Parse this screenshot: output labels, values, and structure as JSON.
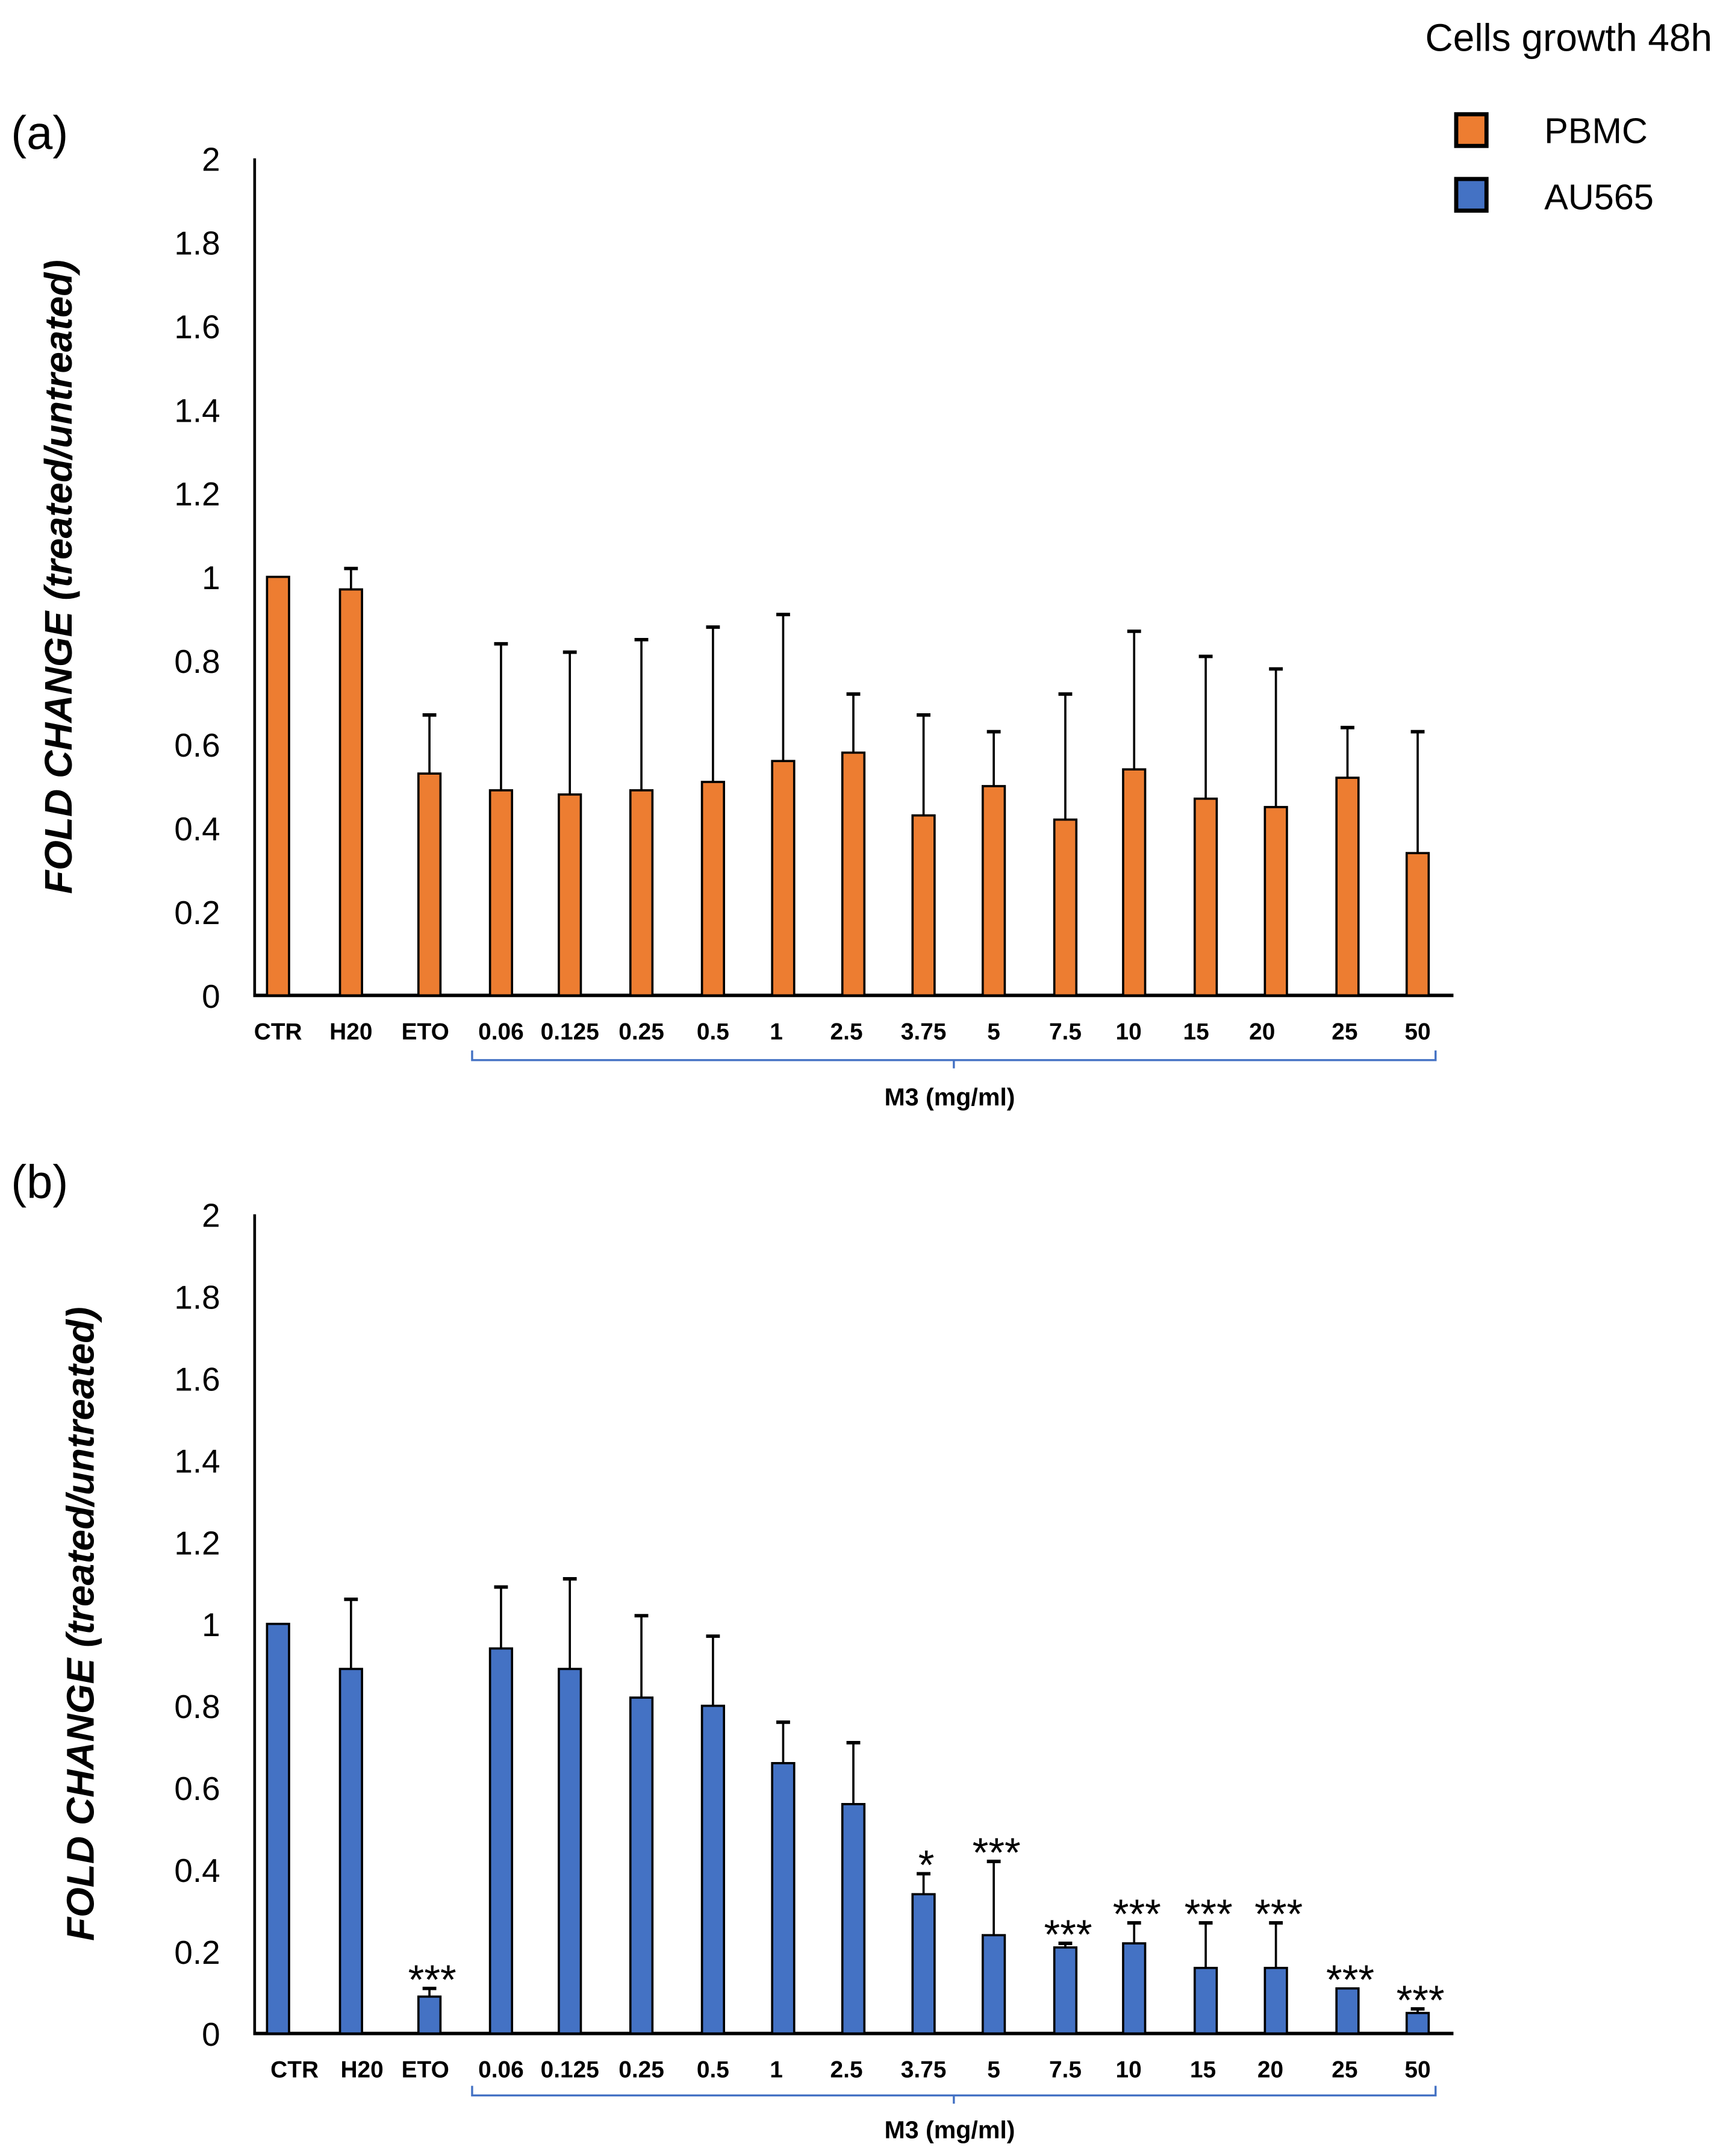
{
  "figure_title": "Cells growth 48h",
  "legend": [
    {
      "label": "PBMC",
      "color": "#ED7D31"
    },
    {
      "label": "AU565",
      "color": "#4472C4"
    }
  ],
  "chart_data": [
    {
      "type": "bar",
      "panel_label": "(a)",
      "series_name": "PBMC",
      "color": "#ED7D31",
      "ylabel_bold": "FOLD CHANGE",
      "ylabel_italic": "(treated/untreated)",
      "xlabel_group": "M3 (mg/ml)",
      "ylim": [
        0,
        2
      ],
      "yticks": [
        "0",
        "0.2",
        "0.4",
        "0.6",
        "0.8",
        "1",
        "1.2",
        "1.4",
        "1.6",
        "1.8",
        "2"
      ],
      "categories": [
        "CTR",
        "H20",
        "ETO",
        "0.06",
        "0.125",
        "0.25",
        "0.5",
        "1",
        "2.5",
        "3.75",
        "5",
        "7.5",
        "10",
        "15",
        "20",
        "25",
        "50"
      ],
      "values": [
        1.0,
        0.97,
        0.53,
        0.49,
        0.48,
        0.49,
        0.51,
        0.56,
        0.58,
        0.43,
        0.5,
        0.42,
        0.54,
        0.47,
        0.45,
        0.52,
        0.34
      ],
      "error_upper": [
        1.0,
        1.02,
        0.67,
        0.84,
        0.82,
        0.85,
        0.88,
        0.91,
        0.72,
        0.67,
        0.63,
        0.72,
        0.87,
        0.81,
        0.78,
        0.64,
        0.63
      ],
      "significance": [
        "",
        "",
        "",
        "",
        "",
        "",
        "",
        "",
        "",
        "",
        "",
        "",
        "",
        "",
        "",
        "",
        ""
      ],
      "grid": false
    },
    {
      "type": "bar",
      "panel_label": "(b)",
      "series_name": "AU565",
      "color": "#4472C4",
      "ylabel_bold": "FOLD CHANGE",
      "ylabel_italic": "(treated/untreated)",
      "xlabel_group": "M3 (mg/ml)",
      "ylim": [
        0,
        2
      ],
      "yticks": [
        "0",
        "0.2",
        "0.4",
        "0.6",
        "0.8",
        "1",
        "1.2",
        "1.4",
        "1.6",
        "1.8",
        "2"
      ],
      "categories": [
        "CTR",
        "H20",
        "ETO",
        "0.06",
        "0.125",
        "0.25",
        "0.5",
        "1",
        "2.5",
        "3.75",
        "5",
        "7.5",
        "10",
        "15",
        "20",
        "25",
        "50"
      ],
      "values": [
        1.0,
        0.89,
        0.09,
        0.94,
        0.89,
        0.82,
        0.8,
        0.66,
        0.56,
        0.34,
        0.24,
        0.21,
        0.22,
        0.16,
        0.16,
        0.11,
        0.05
      ],
      "error_upper": [
        1.0,
        1.06,
        0.11,
        1.09,
        1.11,
        1.02,
        0.97,
        0.76,
        0.71,
        0.39,
        0.42,
        0.22,
        0.27,
        0.27,
        0.27,
        0.11,
        0.06
      ],
      "significance": [
        "",
        "",
        "***",
        "",
        "",
        "",
        "",
        "",
        "",
        "*",
        "***",
        "***",
        "***",
        "***",
        "***",
        "***",
        "***"
      ],
      "grid": false
    }
  ]
}
